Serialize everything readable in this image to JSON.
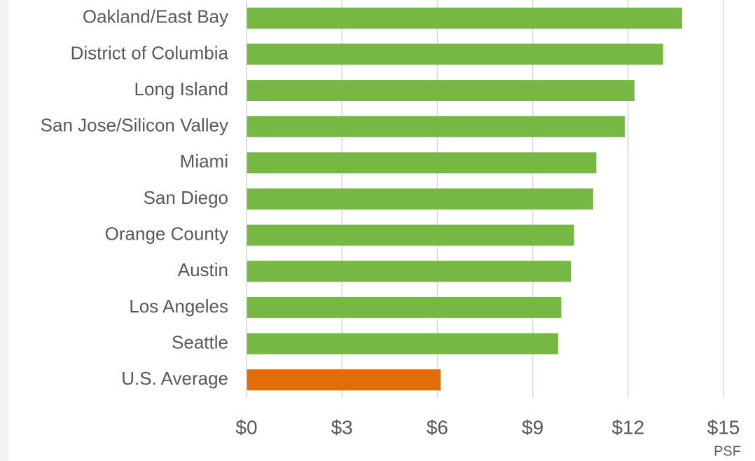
{
  "chart_data": {
    "type": "bar",
    "orientation": "horizontal",
    "categories": [
      "Oakland/East Bay",
      "District of Columbia",
      "Long Island",
      "San Jose/Silicon Valley",
      "Miami",
      "San Diego",
      "Orange County",
      "Austin",
      "Los Angeles",
      "Seattle",
      "U.S. Average"
    ],
    "values": [
      13.7,
      13.1,
      12.2,
      11.9,
      11.0,
      10.9,
      10.3,
      10.2,
      9.9,
      9.8,
      6.1
    ],
    "colors": [
      "#76b843",
      "#76b843",
      "#76b843",
      "#76b843",
      "#76b843",
      "#76b843",
      "#76b843",
      "#76b843",
      "#76b843",
      "#76b843",
      "#e36c0a"
    ],
    "xlim": [
      0,
      15
    ],
    "xticks": [
      {
        "value": 0,
        "label": "$0"
      },
      {
        "value": 3,
        "label": "$3"
      },
      {
        "value": 6,
        "label": "$6"
      },
      {
        "value": 9,
        "label": "$9"
      },
      {
        "value": 12,
        "label": "$12"
      },
      {
        "value": 15,
        "label": "$15"
      }
    ],
    "x_label": "PSF",
    "grid": true
  }
}
